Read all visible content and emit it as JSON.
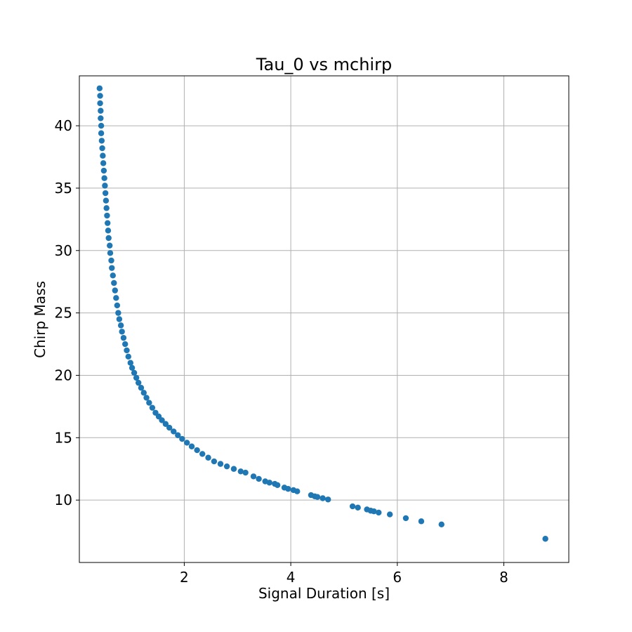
{
  "chart_data": {
    "type": "scatter",
    "title": "Tau_0 vs mchirp",
    "xlabel": "Signal Duration [s]",
    "ylabel": "Chirp Mass",
    "xlim": [
      0.03,
      9.22
    ],
    "ylim": [
      5.0,
      44.0
    ],
    "xticks": [
      2,
      4,
      6,
      8
    ],
    "yticks": [
      10,
      15,
      20,
      25,
      30,
      35,
      40
    ],
    "grid": true,
    "marker_color": "#1f77b4",
    "series": [
      {
        "x": [
          0.41,
          0.42,
          0.42,
          0.43,
          0.43,
          0.44,
          0.44,
          0.45,
          0.46,
          0.47,
          0.48,
          0.49,
          0.5,
          0.51,
          0.52,
          0.53,
          0.54,
          0.55,
          0.56,
          0.57,
          0.58,
          0.6,
          0.61,
          0.63,
          0.64,
          0.66,
          0.68,
          0.7,
          0.72,
          0.74,
          0.76,
          0.78,
          0.81,
          0.83,
          0.86,
          0.89,
          0.92,
          0.95,
          0.99,
          1.02,
          1.06,
          1.1,
          1.14,
          1.19,
          1.24,
          1.29,
          1.34,
          1.4,
          1.46,
          1.52,
          1.58,
          1.65,
          1.72,
          1.8,
          1.88,
          1.96,
          2.05,
          2.14,
          2.24,
          2.34,
          2.45,
          2.56,
          2.68,
          2.8,
          2.93,
          3.06,
          3.15,
          3.3,
          3.4,
          3.52,
          3.6,
          3.7,
          3.75,
          3.88,
          3.95,
          4.05,
          4.12,
          4.38,
          4.45,
          4.5,
          4.6,
          4.7,
          5.16,
          5.26,
          5.43,
          5.5,
          5.56,
          5.65,
          5.86,
          6.16,
          6.45,
          6.83,
          8.78
        ],
        "y": [
          43.0,
          42.4,
          41.8,
          41.2,
          40.6,
          40.0,
          39.4,
          38.8,
          38.2,
          37.6,
          37.0,
          36.4,
          35.8,
          35.2,
          34.6,
          34.0,
          33.4,
          32.8,
          32.2,
          31.6,
          31.0,
          30.4,
          29.8,
          29.2,
          28.6,
          28.0,
          27.4,
          26.8,
          26.2,
          25.6,
          25.0,
          24.5,
          24.0,
          23.5,
          23.0,
          22.5,
          22.0,
          21.5,
          21.0,
          20.6,
          20.2,
          19.8,
          19.4,
          19.0,
          18.6,
          18.2,
          17.8,
          17.4,
          17.0,
          16.7,
          16.4,
          16.1,
          15.8,
          15.5,
          15.2,
          14.9,
          14.6,
          14.3,
          14.0,
          13.7,
          13.4,
          13.1,
          12.9,
          12.7,
          12.5,
          12.3,
          12.2,
          11.9,
          11.7,
          11.5,
          11.4,
          11.3,
          11.2,
          11.0,
          10.9,
          10.8,
          10.7,
          10.4,
          10.3,
          10.25,
          10.15,
          10.05,
          9.5,
          9.4,
          9.25,
          9.15,
          9.1,
          9.0,
          8.85,
          8.55,
          8.3,
          8.05,
          6.9
        ]
      }
    ]
  }
}
